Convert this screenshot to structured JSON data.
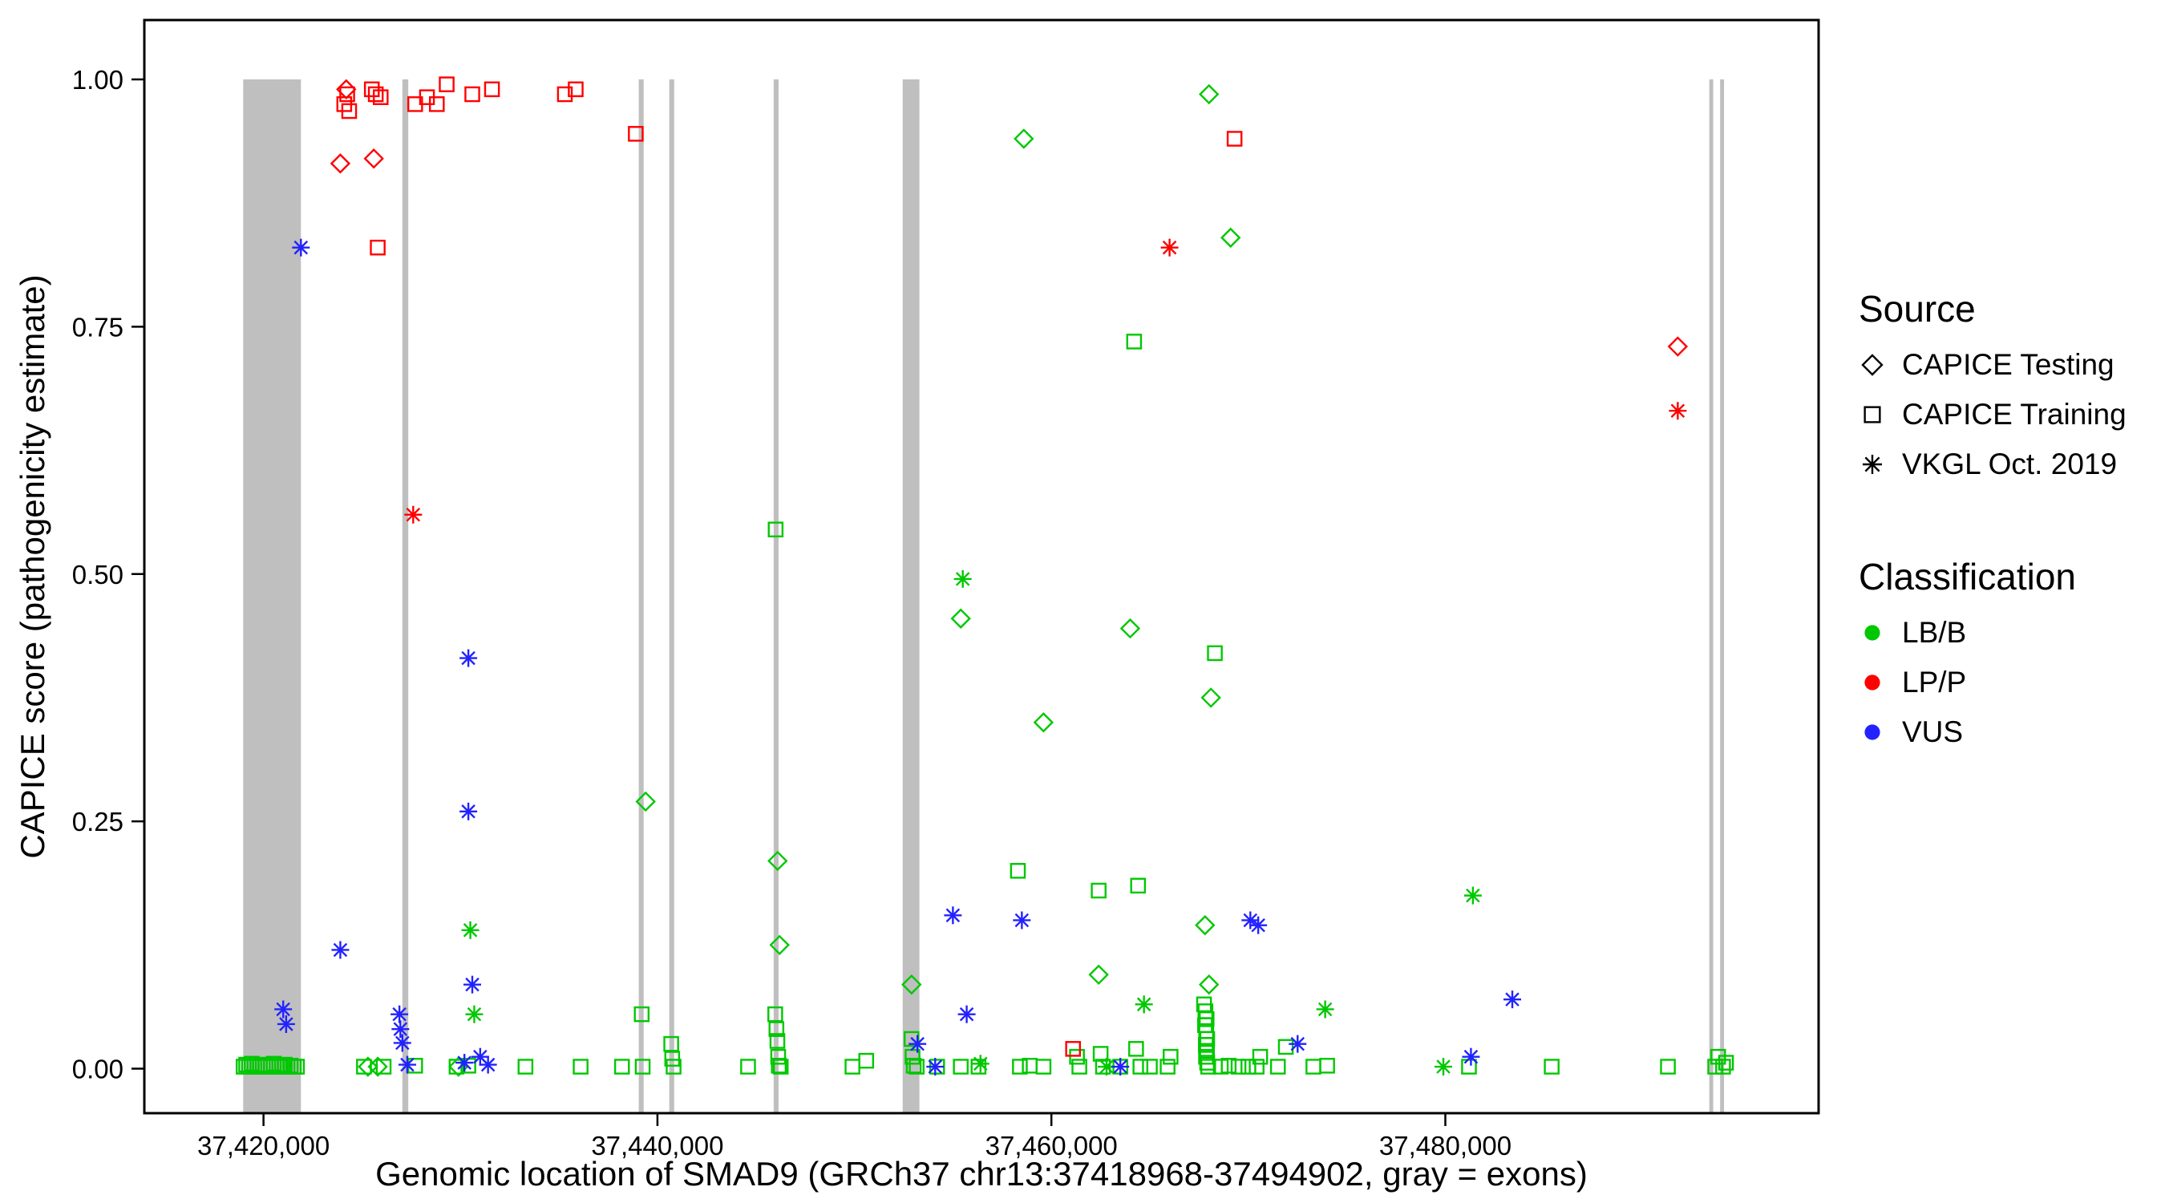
{
  "colors": {
    "lbb": "#00c800",
    "lpp": "#ff0000",
    "vus": "#2222ff",
    "exon": "#bfbfbf",
    "axis": "#000000",
    "background": "#ffffff"
  },
  "legend": {
    "groups": [
      {
        "title": "Source",
        "items": [
          {
            "label": "CAPICE Testing",
            "marker": "diamond",
            "color": "#000000"
          },
          {
            "label": "CAPICE Training",
            "marker": "square",
            "color": "#000000"
          },
          {
            "label": "VKGL Oct. 2019",
            "marker": "asterisk",
            "color": "#000000"
          }
        ]
      },
      {
        "title": "Classification",
        "items": [
          {
            "label": "LB/B",
            "marker": "dot",
            "color": "#00c800"
          },
          {
            "label": "LP/P",
            "marker": "dot",
            "color": "#ff0000"
          },
          {
            "label": "VUS",
            "marker": "dot",
            "color": "#2222ff"
          }
        ]
      }
    ]
  },
  "chart_data": {
    "type": "scatter",
    "title": "",
    "xlabel": "Genomic location of SMAD9 (GRCh37 chr13:37418968-37494902, gray = exons)",
    "ylabel": "CAPICE score (pathogenicity estimate)",
    "xlim": [
      37413950,
      37498950
    ],
    "ylim": [
      -0.045,
      1.06
    ],
    "grid": false,
    "legend_position": "right",
    "x_ticks": [
      {
        "value": 37420000,
        "label": "37,420,000"
      },
      {
        "value": 37440000,
        "label": "37,440,000"
      },
      {
        "value": 37460000,
        "label": "37,460,000"
      },
      {
        "value": 37480000,
        "label": "37,480,000"
      }
    ],
    "y_ticks": [
      {
        "value": 0.0,
        "label": "0.00"
      },
      {
        "value": 0.25,
        "label": "0.25"
      },
      {
        "value": 0.5,
        "label": "0.50"
      },
      {
        "value": 0.75,
        "label": "0.75"
      },
      {
        "value": 1.0,
        "label": "1.00"
      }
    ],
    "exons": [
      [
        37418968,
        37421900
      ],
      [
        37427050,
        37427350
      ],
      [
        37439050,
        37439300
      ],
      [
        37440600,
        37440850
      ],
      [
        37445900,
        37446150
      ],
      [
        37452450,
        37453300
      ],
      [
        37493400,
        37493600
      ],
      [
        37493950,
        37494150
      ]
    ],
    "series": [
      {
        "name": "CAPICE Testing LB/B",
        "source": "CAPICE Testing",
        "classification": "LB/B",
        "marker": "diamond",
        "color": "#00c800",
        "points": [
          [
            37425300,
            0.002
          ],
          [
            37425800,
            0.002
          ],
          [
            37429900,
            0.002
          ],
          [
            37439400,
            0.27
          ],
          [
            37446100,
            0.21
          ],
          [
            37446200,
            0.125
          ],
          [
            37452900,
            0.085
          ],
          [
            37455400,
            0.455
          ],
          [
            37458600,
            0.94
          ],
          [
            37459600,
            0.35
          ],
          [
            37462400,
            0.095
          ],
          [
            37464000,
            0.445
          ],
          [
            37467800,
            0.145
          ],
          [
            37468000,
            0.985
          ],
          [
            37468000,
            0.085
          ],
          [
            37468100,
            0.375
          ],
          [
            37469100,
            0.84
          ]
        ]
      },
      {
        "name": "CAPICE Testing LP/P",
        "source": "CAPICE Testing",
        "classification": "LP/P",
        "marker": "diamond",
        "color": "#ff0000",
        "points": [
          [
            37423900,
            0.915
          ],
          [
            37424200,
            0.99
          ],
          [
            37425600,
            0.92
          ],
          [
            37491800,
            0.73
          ]
        ]
      },
      {
        "name": "CAPICE Training LB/B",
        "source": "CAPICE Training",
        "classification": "LB/B",
        "marker": "square",
        "color": "#00c800",
        "points": [
          [
            37418990,
            0.002
          ],
          [
            37419120,
            0.004
          ],
          [
            37419260,
            0.002
          ],
          [
            37419400,
            0.005
          ],
          [
            37419540,
            0.002
          ],
          [
            37419680,
            0.003
          ],
          [
            37419820,
            0.002
          ],
          [
            37419960,
            0.004
          ],
          [
            37420100,
            0.002
          ],
          [
            37420240,
            0.003
          ],
          [
            37420380,
            0.002
          ],
          [
            37420520,
            0.005
          ],
          [
            37420660,
            0.002
          ],
          [
            37420800,
            0.003
          ],
          [
            37420940,
            0.002
          ],
          [
            37421080,
            0.004
          ],
          [
            37421220,
            0.002
          ],
          [
            37421380,
            0.003
          ],
          [
            37421540,
            0.002
          ],
          [
            37421700,
            0.002
          ],
          [
            37425100,
            0.002
          ],
          [
            37426100,
            0.002
          ],
          [
            37427700,
            0.003
          ],
          [
            37429800,
            0.002
          ],
          [
            37430400,
            0.003
          ],
          [
            37433300,
            0.002
          ],
          [
            37436100,
            0.002
          ],
          [
            37438200,
            0.002
          ],
          [
            37439200,
            0.055
          ],
          [
            37439250,
            0.002
          ],
          [
            37440700,
            0.025
          ],
          [
            37440750,
            0.01
          ],
          [
            37440820,
            0.002
          ],
          [
            37444600,
            0.002
          ],
          [
            37446000,
            0.545
          ],
          [
            37445980,
            0.055
          ],
          [
            37446040,
            0.04
          ],
          [
            37446090,
            0.028
          ],
          [
            37446130,
            0.012
          ],
          [
            37446160,
            0.003
          ],
          [
            37446260,
            0.002
          ],
          [
            37449900,
            0.002
          ],
          [
            37450600,
            0.008
          ],
          [
            37452900,
            0.03
          ],
          [
            37452950,
            0.012
          ],
          [
            37453010,
            0.003
          ],
          [
            37453160,
            0.002
          ],
          [
            37454200,
            0.002
          ],
          [
            37455400,
            0.002
          ],
          [
            37456300,
            0.002
          ],
          [
            37458300,
            0.2
          ],
          [
            37458400,
            0.002
          ],
          [
            37458900,
            0.003
          ],
          [
            37459600,
            0.002
          ],
          [
            37461300,
            0.012
          ],
          [
            37461420,
            0.002
          ],
          [
            37462400,
            0.18
          ],
          [
            37462500,
            0.015
          ],
          [
            37462620,
            0.002
          ],
          [
            37463500,
            0.002
          ],
          [
            37464200,
            0.735
          ],
          [
            37464400,
            0.185
          ],
          [
            37464300,
            0.02
          ],
          [
            37464520,
            0.002
          ],
          [
            37465000,
            0.002
          ],
          [
            37465900,
            0.002
          ],
          [
            37466050,
            0.012
          ],
          [
            37467750,
            0.065
          ],
          [
            37467820,
            0.058
          ],
          [
            37467880,
            0.05
          ],
          [
            37467800,
            0.044
          ],
          [
            37467860,
            0.038
          ],
          [
            37467910,
            0.03
          ],
          [
            37467840,
            0.024
          ],
          [
            37467900,
            0.018
          ],
          [
            37467850,
            0.012
          ],
          [
            37467910,
            0.006
          ],
          [
            37467960,
            0.002
          ],
          [
            37468300,
            0.42
          ],
          [
            37468600,
            0.002
          ],
          [
            37469000,
            0.003
          ],
          [
            37469500,
            0.002
          ],
          [
            37470000,
            0.002
          ],
          [
            37470420,
            0.002
          ],
          [
            37470600,
            0.012
          ],
          [
            37471500,
            0.002
          ],
          [
            37471900,
            0.022
          ],
          [
            37473300,
            0.002
          ],
          [
            37474000,
            0.003
          ],
          [
            37481200,
            0.002
          ],
          [
            37485400,
            0.002
          ],
          [
            37491300,
            0.002
          ],
          [
            37493700,
            0.002
          ],
          [
            37493850,
            0.012
          ],
          [
            37494100,
            0.002
          ],
          [
            37494250,
            0.006
          ]
        ]
      },
      {
        "name": "CAPICE Training LP/P",
        "source": "CAPICE Training",
        "classification": "LP/P",
        "marker": "square",
        "color": "#ff0000",
        "points": [
          [
            37424100,
            0.975
          ],
          [
            37424250,
            0.985
          ],
          [
            37424350,
            0.968
          ],
          [
            37425500,
            0.99
          ],
          [
            37425700,
            0.985
          ],
          [
            37425950,
            0.982
          ],
          [
            37425800,
            0.83
          ],
          [
            37427700,
            0.975
          ],
          [
            37428300,
            0.982
          ],
          [
            37428800,
            0.975
          ],
          [
            37429300,
            0.995
          ],
          [
            37430600,
            0.985
          ],
          [
            37431600,
            0.99
          ],
          [
            37435300,
            0.985
          ],
          [
            37435850,
            0.99
          ],
          [
            37438900,
            0.945
          ],
          [
            37461100,
            0.02
          ],
          [
            37469300,
            0.94
          ]
        ]
      },
      {
        "name": "VKGL Oct. 2019 LB/B",
        "source": "VKGL Oct. 2019",
        "classification": "LB/B",
        "marker": "asterisk",
        "color": "#00c800",
        "points": [
          [
            37430500,
            0.14
          ],
          [
            37430700,
            0.055
          ],
          [
            37455500,
            0.495
          ],
          [
            37456400,
            0.005
          ],
          [
            37462800,
            0.002
          ],
          [
            37464700,
            0.065
          ],
          [
            37473900,
            0.06
          ],
          [
            37479900,
            0.002
          ],
          [
            37481400,
            0.175
          ]
        ]
      },
      {
        "name": "VKGL Oct. 2019 LP/P",
        "source": "VKGL Oct. 2019",
        "classification": "LP/P",
        "marker": "asterisk",
        "color": "#ff0000",
        "points": [
          [
            37427600,
            0.56
          ],
          [
            37466000,
            0.83
          ],
          [
            37491800,
            0.665
          ]
        ]
      },
      {
        "name": "VKGL Oct. 2019 VUS",
        "source": "VKGL Oct. 2019",
        "classification": "VUS",
        "marker": "asterisk",
        "color": "#2222ff",
        "points": [
          [
            37421000,
            0.06
          ],
          [
            37421150,
            0.045
          ],
          [
            37421900,
            0.83
          ],
          [
            37423900,
            0.12
          ],
          [
            37426900,
            0.055
          ],
          [
            37426950,
            0.04
          ],
          [
            37427050,
            0.026
          ],
          [
            37427300,
            0.004
          ],
          [
            37430200,
            0.006
          ],
          [
            37430400,
            0.415
          ],
          [
            37430400,
            0.26
          ],
          [
            37430600,
            0.085
          ],
          [
            37431000,
            0.012
          ],
          [
            37431400,
            0.004
          ],
          [
            37453200,
            0.025
          ],
          [
            37454100,
            0.002
          ],
          [
            37455000,
            0.155
          ],
          [
            37455700,
            0.055
          ],
          [
            37458500,
            0.15
          ],
          [
            37463500,
            0.002
          ],
          [
            37470100,
            0.15
          ],
          [
            37470500,
            0.145
          ],
          [
            37472500,
            0.025
          ],
          [
            37481300,
            0.012
          ],
          [
            37483400,
            0.07
          ]
        ]
      }
    ]
  }
}
